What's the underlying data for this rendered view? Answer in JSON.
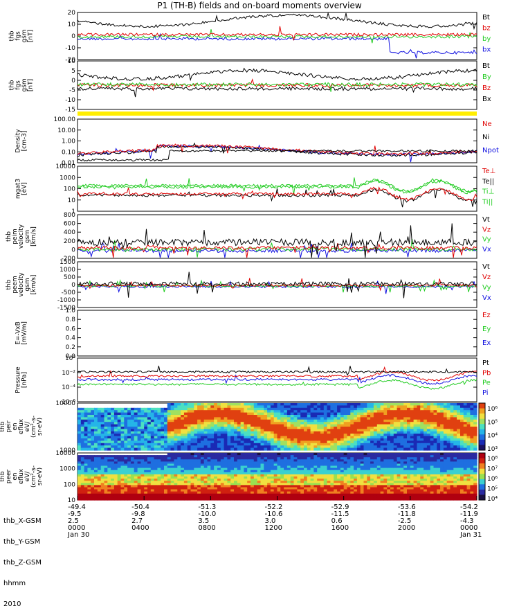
{
  "title": "P1 (TH-B) fields and on-board moments overview",
  "colors": {
    "black": "#000000",
    "red": "#e00000",
    "green": "#22cc22",
    "blue": "#1010e0",
    "yellow": "#ffee00"
  },
  "chart_data": [
    {
      "id": "fgs",
      "type": "line",
      "ylabel": [
        "thb",
        "fgs",
        "gsm",
        "[nT]"
      ],
      "yticks": [
        "20",
        "10",
        "0",
        "-10",
        "-20"
      ],
      "ylim": [
        -20,
        20
      ],
      "series": [
        {
          "name": "Bt",
          "color": "black",
          "level": 10
        },
        {
          "name": "bz",
          "color": "red",
          "level": 3
        },
        {
          "name": "by",
          "color": "green",
          "level": 0
        },
        {
          "name": "bx",
          "color": "blue",
          "level": -1
        }
      ]
    },
    {
      "id": "fgs-gsm2",
      "type": "line",
      "ylabel": [
        "thb",
        "fgs",
        "gsm",
        "[nT]"
      ],
      "yticks": [
        "10",
        "5",
        "0",
        "-5",
        "-10",
        "-15"
      ],
      "ylim": [
        -17,
        11
      ],
      "series": [
        {
          "name": "Bt",
          "color": "black",
          "level": 4
        },
        {
          "name": "By",
          "color": "green",
          "level": -1
        },
        {
          "name": "Bz",
          "color": "red",
          "level": -1
        },
        {
          "name": "Bx",
          "color": "black",
          "level": -2
        }
      ]
    },
    {
      "id": "density",
      "type": "line",
      "ylabel": [
        "Density",
        "[cm-3]"
      ],
      "yticks": [
        "100.00",
        "10.00",
        "1.00",
        "0.10",
        "0.01"
      ],
      "log": true,
      "series": [
        {
          "name": "Ne",
          "color": "red"
        },
        {
          "name": "Ni",
          "color": "black"
        },
        {
          "name": "Npot",
          "color": "blue"
        }
      ]
    },
    {
      "id": "temperature",
      "type": "line",
      "ylabel": [
        "mgat3",
        "[eV]"
      ],
      "yticks": [
        "10000",
        "1000",
        "100",
        "10",
        "1"
      ],
      "log": true,
      "series": [
        {
          "name": "Te⊥",
          "color": "red"
        },
        {
          "name": "Te||",
          "color": "black"
        },
        {
          "name": "Ti⊥",
          "color": "green"
        },
        {
          "name": "Ti||",
          "color": "green"
        }
      ]
    },
    {
      "id": "peim-velocity",
      "type": "line",
      "ylabel": [
        "thb",
        "peim",
        "velocity",
        "gsm",
        "[km/s]"
      ],
      "yticks": [
        "800",
        "600",
        "400",
        "200",
        "0",
        "-200"
      ],
      "ylim": [
        -200,
        800
      ],
      "series": [
        {
          "name": "Vt",
          "color": "black"
        },
        {
          "name": "Vz",
          "color": "red"
        },
        {
          "name": "Vy",
          "color": "green"
        },
        {
          "name": "Vx",
          "color": "blue"
        }
      ]
    },
    {
      "id": "peem-velocity",
      "type": "line",
      "ylabel": [
        "thb",
        "peem",
        "velocity",
        "gsm",
        "[km/s]"
      ],
      "yticks": [
        "1500",
        "1000",
        "500",
        "0",
        "-500",
        "-1000",
        "-1500"
      ],
      "ylim": [
        -1500,
        1500
      ],
      "series": [
        {
          "name": "Vt",
          "color": "black"
        },
        {
          "name": "Vz",
          "color": "red"
        },
        {
          "name": "Vy",
          "color": "green"
        },
        {
          "name": "Vx",
          "color": "blue"
        }
      ]
    },
    {
      "id": "efield",
      "type": "line",
      "ylabel": [
        "E=-VxB",
        "[mV/m]"
      ],
      "yticks": [
        "1.0",
        "0.8",
        "0.6",
        "0.4",
        "0.2",
        "0.0"
      ],
      "ylim": [
        0,
        1
      ],
      "series": [
        {
          "name": "Ez",
          "color": "red"
        },
        {
          "name": "Ey",
          "color": "green"
        },
        {
          "name": "Ex",
          "color": "blue"
        }
      ]
    },
    {
      "id": "pressure",
      "type": "line",
      "ylabel": [
        "Pressure",
        "[nPa]"
      ],
      "yticks": [
        "10⁰",
        "10⁻²",
        "10⁻⁴",
        "10⁻⁶"
      ],
      "log": true,
      "series": [
        {
          "name": "Pt",
          "color": "black"
        },
        {
          "name": "Pb",
          "color": "red"
        },
        {
          "name": "Pe",
          "color": "green"
        },
        {
          "name": "Pi",
          "color": "blue"
        }
      ]
    },
    {
      "id": "peir-spectrogram",
      "type": "heatmap",
      "ylabel": [
        "thb",
        "peir",
        "en",
        "eflux",
        "eV/",
        "(cm²-s-",
        "sr-eV)"
      ],
      "yticks": [
        "10000",
        "1000"
      ],
      "colorbar": [
        "10⁶",
        "10⁵",
        "10⁴",
        "10³"
      ]
    },
    {
      "id": "peer-spectrogram",
      "type": "heatmap",
      "ylabel": [
        "thb",
        "peer",
        "en",
        "eflux",
        "eV/",
        "(cm²-s-",
        "sr-eV)"
      ],
      "yticks": [
        "10000",
        "1000",
        "100",
        "10"
      ],
      "colorbar": [
        "10⁸",
        "10⁷",
        "10⁶",
        "10⁵",
        "10⁴"
      ]
    }
  ],
  "xaxis": {
    "labels": [
      "thb_X-GSM",
      "thb_Y-GSM",
      "thb_Z-GSM",
      "hhmm",
      "2010"
    ],
    "columns": [
      [
        "-49.4",
        "-9.5",
        "2.5",
        "0000",
        "Jan 30"
      ],
      [
        "-50.4",
        "-9.8",
        "2.7",
        "0400",
        ""
      ],
      [
        "-51.3",
        "-10.0",
        "3.5",
        "0800",
        ""
      ],
      [
        "-52.2",
        "-10.6",
        "3.0",
        "1200",
        ""
      ],
      [
        "-52.9",
        "-11.5",
        "0.6",
        "1600",
        ""
      ],
      [
        "-53.6",
        "-11.8",
        "-2.5",
        "2000",
        ""
      ],
      [
        "-54.2",
        "-11.9",
        "-4.3",
        "0000",
        "Jan 31"
      ]
    ]
  }
}
